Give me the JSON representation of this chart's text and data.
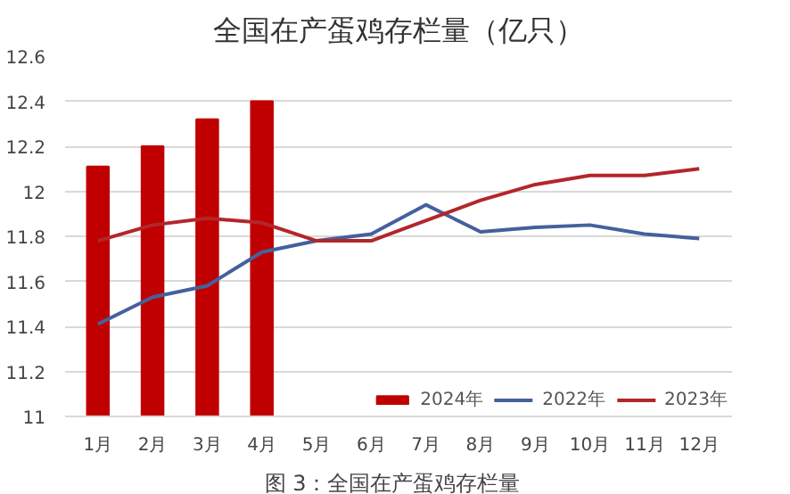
{
  "chart_data": {
    "type": "bar",
    "title": "全国在产蛋鸡存栏量（亿只）",
    "categories": [
      "1月",
      "2月",
      "3月",
      "4月",
      "5月",
      "6月",
      "7月",
      "8月",
      "9月",
      "10月",
      "11月",
      "12月"
    ],
    "series": [
      {
        "name": "2024年",
        "color": "#c00000",
        "values": [
          12.11,
          12.2,
          12.32,
          12.4,
          null,
          null,
          null,
          null,
          null,
          null,
          null,
          null
        ]
      },
      {
        "name": "2022年",
        "type": "line",
        "color": "#44619d",
        "values": [
          11.41,
          11.53,
          11.58,
          11.73,
          11.78,
          11.81,
          11.94,
          11.82,
          11.84,
          11.85,
          11.81,
          11.79
        ]
      },
      {
        "name": "2023年",
        "type": "line",
        "color": "#b3262b",
        "values": [
          11.78,
          11.85,
          11.88,
          11.86,
          11.78,
          11.78,
          11.87,
          11.96,
          12.03,
          12.07,
          12.07,
          12.1
        ]
      }
    ],
    "ylim": [
      11,
      12.6
    ],
    "yticks": [
      11,
      11.2,
      11.4,
      11.6,
      11.8,
      12,
      12.2,
      12.4,
      12.6
    ],
    "grid": "y",
    "legend": "bottom",
    "annotations": [
      "图 3：全国在产蛋鸡存栏量"
    ]
  }
}
